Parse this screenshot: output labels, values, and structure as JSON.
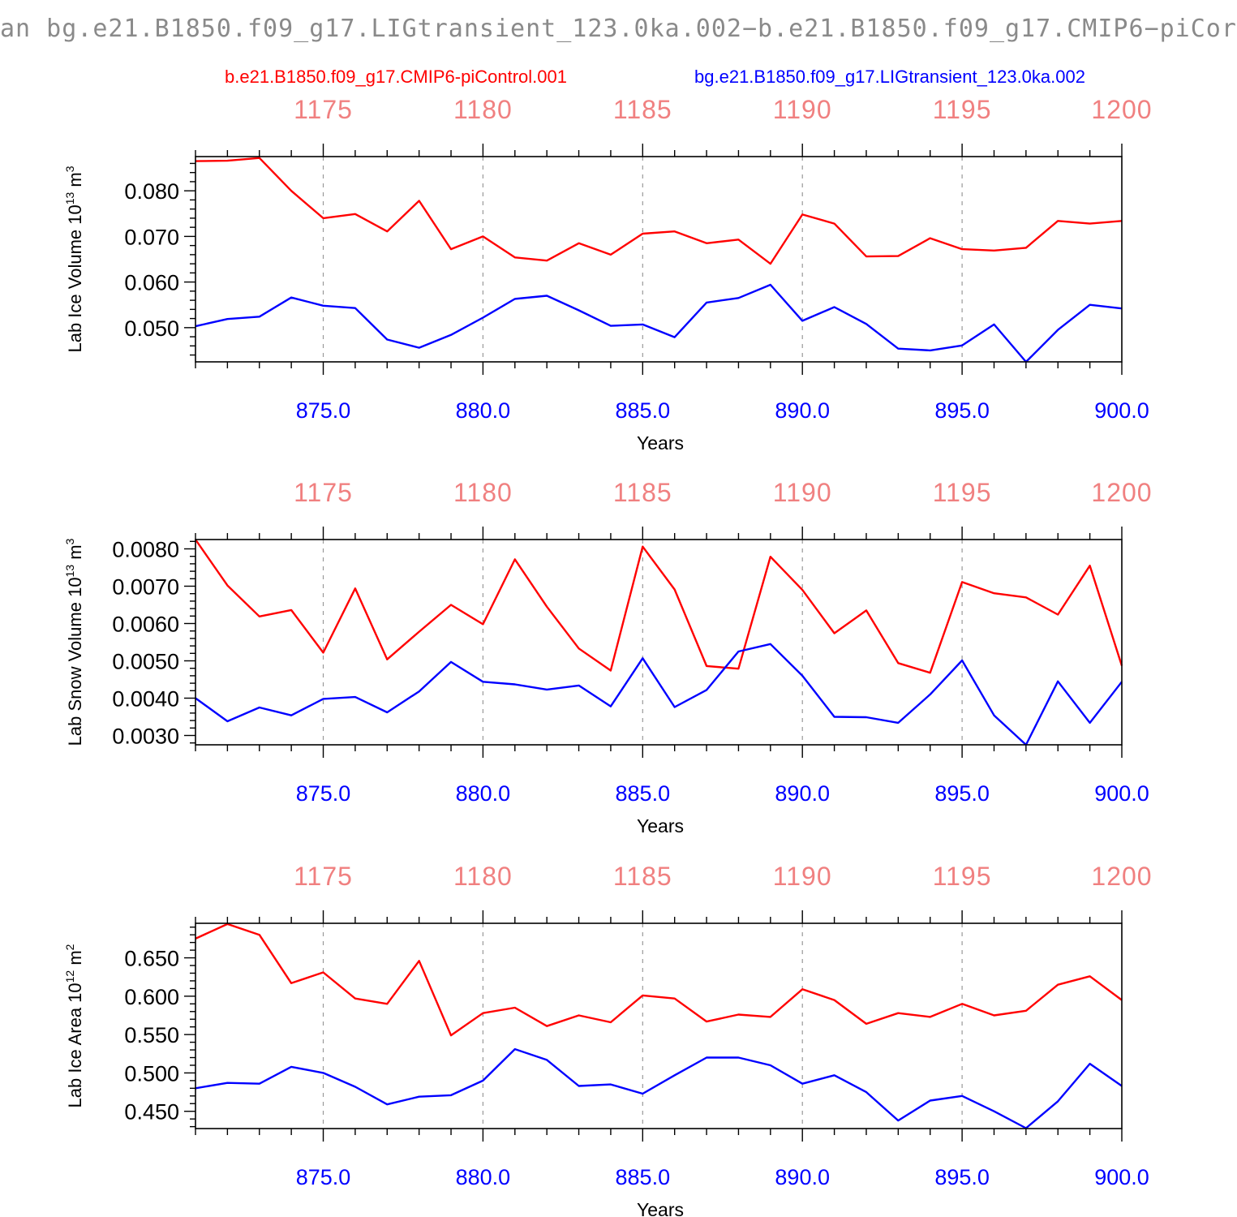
{
  "title": "an bg.e21.B1850.f09_g17.LIGtransient_123.0ka.002−b.e21.B1850.f09_g17.CMIP6−piCor",
  "legend": {
    "left": "b.e21.B1850.f09_g17.CMIP6-piControl.001",
    "right": "bg.e21.B1850.f09_g17.LIGtransient_123.0ka.002"
  },
  "colors": {
    "piControl": "#ff0000",
    "LIGtransient": "#0000ff",
    "top_axis": "#f08080"
  },
  "chart_data": [
    {
      "type": "line",
      "ylabel": "Lab Ice Volume 10",
      "ylabel_exp": "13",
      "ylabel_unit": "m",
      "ylabel_unit_exp": "3",
      "xlabel": "Years",
      "xlim": [
        871,
        900
      ],
      "ylim": [
        0.0425,
        0.0875
      ],
      "grid": "vertical dashed at major ticks",
      "x_ticks": [
        875,
        880,
        885,
        890,
        895,
        900
      ],
      "x_tick_labels": [
        "875.0",
        "880.0",
        "885.0",
        "890.0",
        "895.0",
        "900.0"
      ],
      "top_ticks": [
        875,
        880,
        885,
        890,
        895,
        900
      ],
      "top_tick_labels": [
        "1175",
        "1180",
        "1185",
        "1190",
        "1195",
        "1200"
      ],
      "y_ticks": [
        0.05,
        0.06,
        0.07,
        0.08
      ],
      "y_tick_labels": [
        "0.050",
        "0.060",
        "0.070",
        "0.080"
      ],
      "x": [
        871,
        872,
        873,
        874,
        875,
        876,
        877,
        878,
        879,
        880,
        881,
        882,
        883,
        884,
        885,
        886,
        887,
        888,
        889,
        890,
        891,
        892,
        893,
        894,
        895,
        896,
        897,
        898,
        899,
        900
      ],
      "series": [
        {
          "name": "b.e21.B1850.f09_g17.CMIP6-piControl.001",
          "color": "#ff0000",
          "values": [
            0.0865,
            0.0866,
            0.0872,
            0.08,
            0.074,
            0.0749,
            0.0711,
            0.0778,
            0.0672,
            0.07,
            0.0654,
            0.0647,
            0.0685,
            0.066,
            0.0706,
            0.0711,
            0.0685,
            0.0693,
            0.064,
            0.0748,
            0.0728,
            0.0656,
            0.0657,
            0.0696,
            0.0672,
            0.0669,
            0.0675,
            0.0734,
            0.0728,
            0.0734
          ]
        },
        {
          "name": "bg.e21.B1850.f09_g17.LIGtransient_123.0ka.002",
          "color": "#0000ff",
          "values": [
            0.0503,
            0.0519,
            0.0524,
            0.0566,
            0.0548,
            0.0543,
            0.0474,
            0.0456,
            0.0484,
            0.0522,
            0.0563,
            0.057,
            0.0538,
            0.0504,
            0.0507,
            0.0479,
            0.0555,
            0.0565,
            0.0594,
            0.0515,
            0.0545,
            0.0508,
            0.0454,
            0.045,
            0.0461,
            0.0507,
            0.0425,
            0.0495,
            0.055,
            0.0542
          ]
        }
      ]
    },
    {
      "type": "line",
      "ylabel": "Lab Snow Volume 10",
      "ylabel_exp": "13",
      "ylabel_unit": "m",
      "ylabel_unit_exp": "3",
      "xlabel": "Years",
      "xlim": [
        871,
        900
      ],
      "ylim": [
        0.00275,
        0.00825
      ],
      "grid": "vertical dashed at major ticks",
      "x_ticks": [
        875,
        880,
        885,
        890,
        895,
        900
      ],
      "x_tick_labels": [
        "875.0",
        "880.0",
        "885.0",
        "890.0",
        "895.0",
        "900.0"
      ],
      "top_ticks": [
        875,
        880,
        885,
        890,
        895,
        900
      ],
      "top_tick_labels": [
        "1175",
        "1180",
        "1185",
        "1190",
        "1195",
        "1200"
      ],
      "y_ticks": [
        0.003,
        0.004,
        0.005,
        0.006,
        0.007,
        0.008
      ],
      "y_tick_labels": [
        "0.0030",
        "0.0040",
        "0.0050",
        "0.0060",
        "0.0070",
        "0.0080"
      ],
      "x": [
        871,
        872,
        873,
        874,
        875,
        876,
        877,
        878,
        879,
        880,
        881,
        882,
        883,
        884,
        885,
        886,
        887,
        888,
        889,
        890,
        891,
        892,
        893,
        894,
        895,
        896,
        897,
        898,
        899,
        900
      ],
      "series": [
        {
          "name": "b.e21.B1850.f09_g17.CMIP6-piControl.001",
          "color": "#ff0000",
          "values": [
            0.00825,
            0.00702,
            0.00619,
            0.00636,
            0.00522,
            0.00694,
            0.00504,
            0.00578,
            0.0065,
            0.00598,
            0.00772,
            0.00645,
            0.00533,
            0.00474,
            0.00806,
            0.00691,
            0.00486,
            0.00479,
            0.00779,
            0.0069,
            0.00574,
            0.00635,
            0.00494,
            0.00468,
            0.00711,
            0.00681,
            0.0067,
            0.00624,
            0.00755,
            0.00487
          ]
        },
        {
          "name": "bg.e21.B1850.f09_g17.LIGtransient_123.0ka.002",
          "color": "#0000ff",
          "values": [
            0.004,
            0.00338,
            0.00375,
            0.00354,
            0.00398,
            0.00403,
            0.00362,
            0.00418,
            0.00497,
            0.00444,
            0.00437,
            0.00423,
            0.00434,
            0.00378,
            0.00507,
            0.00376,
            0.00422,
            0.00525,
            0.00545,
            0.0046,
            0.0035,
            0.00349,
            0.00334,
            0.0041,
            0.00501,
            0.00354,
            0.00275,
            0.00445,
            0.00334,
            0.00444
          ]
        }
      ]
    },
    {
      "type": "line",
      "ylabel": "Lab Ice Area 10",
      "ylabel_exp": "12",
      "ylabel_unit": "m",
      "ylabel_unit_exp": "2",
      "xlabel": "Years",
      "xlim": [
        871,
        900
      ],
      "ylim": [
        0.4275,
        0.695
      ],
      "grid": "vertical dashed at major ticks",
      "x_ticks": [
        875,
        880,
        885,
        890,
        895,
        900
      ],
      "x_tick_labels": [
        "875.0",
        "880.0",
        "885.0",
        "890.0",
        "895.0",
        "900.0"
      ],
      "top_ticks": [
        875,
        880,
        885,
        890,
        895,
        900
      ],
      "top_tick_labels": [
        "1175",
        "1180",
        "1185",
        "1190",
        "1195",
        "1200"
      ],
      "y_ticks": [
        0.45,
        0.5,
        0.55,
        0.6,
        0.65
      ],
      "y_tick_labels": [
        "0.450",
        "0.500",
        "0.550",
        "0.600",
        "0.650"
      ],
      "x": [
        871,
        872,
        873,
        874,
        875,
        876,
        877,
        878,
        879,
        880,
        881,
        882,
        883,
        884,
        885,
        886,
        887,
        888,
        889,
        890,
        891,
        892,
        893,
        894,
        895,
        896,
        897,
        898,
        899,
        900
      ],
      "series": [
        {
          "name": "b.e21.B1850.f09_g17.CMIP6-piControl.001",
          "color": "#ff0000",
          "values": [
            0.675,
            0.694,
            0.68,
            0.617,
            0.631,
            0.597,
            0.59,
            0.646,
            0.549,
            0.578,
            0.585,
            0.561,
            0.575,
            0.566,
            0.601,
            0.597,
            0.567,
            0.576,
            0.573,
            0.609,
            0.595,
            0.564,
            0.578,
            0.573,
            0.59,
            0.575,
            0.581,
            0.615,
            0.626,
            0.595
          ]
        },
        {
          "name": "bg.e21.B1850.f09_g17.LIGtransient_123.0ka.002",
          "color": "#0000ff",
          "values": [
            0.48,
            0.487,
            0.486,
            0.508,
            0.5,
            0.482,
            0.459,
            0.469,
            0.471,
            0.49,
            0.531,
            0.517,
            0.483,
            0.485,
            0.473,
            0.497,
            0.52,
            0.52,
            0.51,
            0.486,
            0.497,
            0.475,
            0.438,
            0.464,
            0.47,
            0.45,
            0.428,
            0.463,
            0.512,
            0.483
          ]
        }
      ]
    }
  ]
}
